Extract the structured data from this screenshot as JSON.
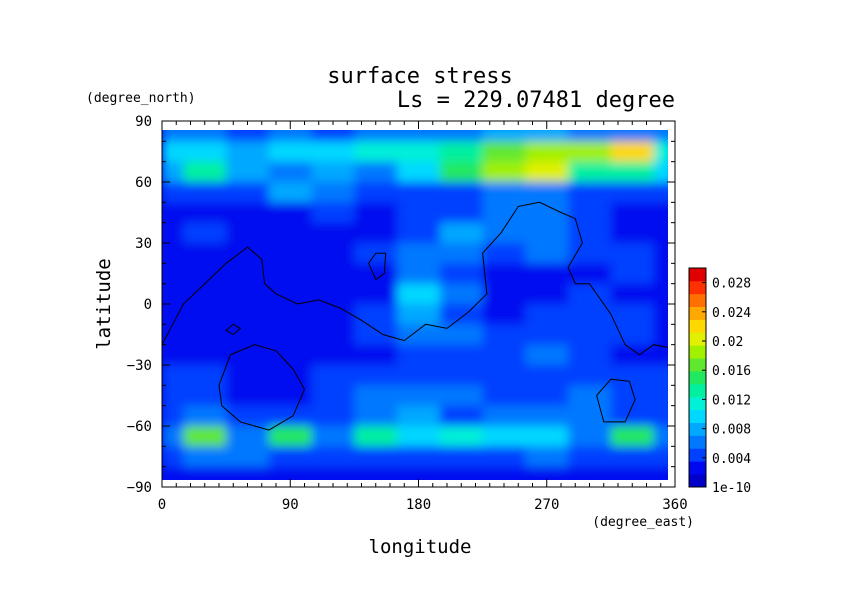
{
  "chart_data": {
    "type": "heatmap",
    "title": "surface stress",
    "subtitle": "Ls = 229.07481 degree",
    "xlabel": "longitude",
    "ylabel": "latitude",
    "x_unit": "(degree_east)",
    "y_unit": "(degree_north)",
    "xlim": [
      0,
      360
    ],
    "ylim": [
      -90,
      90
    ],
    "x_ticks": [
      "0",
      "90",
      "180",
      "270",
      "360"
    ],
    "x_tick_values": [
      0,
      90,
      180,
      270,
      360
    ],
    "y_ticks": [
      "90",
      "60",
      "30",
      "0",
      "−30",
      "−60",
      "−90"
    ],
    "y_tick_values": [
      90,
      60,
      30,
      0,
      -30,
      -60,
      -90
    ],
    "colorbar": {
      "labels": [
        "0.028",
        "0.024",
        "0.02",
        "0.016",
        "0.012",
        "0.008",
        "0.004",
        "1e-10"
      ],
      "label_values": [
        0.028,
        0.024,
        0.02,
        0.016,
        0.012,
        0.008,
        0.004,
        0
      ],
      "range": [
        0,
        0.03
      ],
      "colors": [
        "#0000c8",
        "#0008f0",
        "#0040ff",
        "#0078ff",
        "#00a8ff",
        "#00d8ff",
        "#00f0d8",
        "#00f0a0",
        "#20e860",
        "#60e830",
        "#a0f000",
        "#e0f000",
        "#ffd800",
        "#ffa800",
        "#ff7000",
        "#ff3000",
        "#e00000"
      ]
    },
    "field_grid": {
      "lats": [
        85,
        75,
        65,
        55,
        45,
        35,
        25,
        15,
        5,
        -5,
        -15,
        -25,
        -35,
        -45,
        -55,
        -65,
        -75,
        -85
      ],
      "lons": [
        0,
        30,
        60,
        90,
        120,
        150,
        180,
        210,
        240,
        270,
        300,
        330,
        360
      ],
      "values": [
        [
          0.006,
          0.006,
          0.005,
          0.006,
          0.005,
          0.006,
          0.007,
          0.007,
          0.008,
          0.008,
          0.007,
          0.007,
          0.006
        ],
        [
          0.01,
          0.009,
          0.008,
          0.01,
          0.009,
          0.012,
          0.011,
          0.014,
          0.016,
          0.018,
          0.018,
          0.022,
          0.012
        ],
        [
          0.008,
          0.014,
          0.008,
          0.007,
          0.008,
          0.007,
          0.01,
          0.015,
          0.018,
          0.02,
          0.014,
          0.013,
          0.01
        ],
        [
          0.004,
          0.004,
          0.005,
          0.008,
          0.006,
          0.004,
          0.004,
          0.005,
          0.006,
          0.007,
          0.004,
          0.004,
          0.004
        ],
        [
          0.003,
          0.003,
          0.003,
          0.003,
          0.004,
          0.003,
          0.004,
          0.005,
          0.007,
          0.006,
          0.004,
          0.003,
          0.003
        ],
        [
          0.003,
          0.004,
          0.002,
          0.002,
          0.003,
          0.003,
          0.005,
          0.008,
          0.006,
          0.007,
          0.004,
          0.003,
          0.003
        ],
        [
          0.003,
          0.002,
          0.002,
          0.002,
          0.003,
          0.004,
          0.006,
          0.006,
          0.004,
          0.006,
          0.004,
          0.004,
          0.003
        ],
        [
          0.002,
          0.002,
          0.002,
          0.002,
          0.003,
          0.003,
          0.006,
          0.004,
          0.003,
          0.003,
          0.002,
          0.004,
          0.002
        ],
        [
          0.002,
          0.002,
          0.002,
          0.002,
          0.003,
          0.003,
          0.01,
          0.006,
          0.003,
          0.003,
          0.004,
          0.003,
          0.002
        ],
        [
          0.002,
          0.002,
          0.002,
          0.002,
          0.003,
          0.004,
          0.008,
          0.005,
          0.003,
          0.004,
          0.004,
          0.004,
          0.002
        ],
        [
          0.002,
          0.002,
          0.002,
          0.002,
          0.003,
          0.004,
          0.007,
          0.006,
          0.005,
          0.005,
          0.005,
          0.004,
          0.002
        ],
        [
          0.002,
          0.002,
          0.002,
          0.002,
          0.003,
          0.003,
          0.004,
          0.004,
          0.004,
          0.007,
          0.004,
          0.003,
          0.002
        ],
        [
          0.004,
          0.004,
          0.003,
          0.003,
          0.004,
          0.004,
          0.004,
          0.004,
          0.004,
          0.004,
          0.004,
          0.004,
          0.004
        ],
        [
          0.005,
          0.004,
          0.003,
          0.003,
          0.005,
          0.006,
          0.007,
          0.006,
          0.005,
          0.004,
          0.006,
          0.005,
          0.005
        ],
        [
          0.004,
          0.006,
          0.004,
          0.004,
          0.005,
          0.006,
          0.008,
          0.005,
          0.007,
          0.006,
          0.006,
          0.005,
          0.004
        ],
        [
          0.006,
          0.016,
          0.007,
          0.015,
          0.006,
          0.013,
          0.009,
          0.012,
          0.01,
          0.009,
          0.007,
          0.015,
          0.006
        ],
        [
          0.005,
          0.006,
          0.006,
          0.005,
          0.004,
          0.005,
          0.005,
          0.004,
          0.004,
          0.006,
          0.004,
          0.005,
          0.005
        ],
        [
          0.003,
          0.003,
          0.003,
          0.003,
          0.003,
          0.003,
          0.003,
          0.003,
          0.003,
          0.003,
          0.003,
          0.003,
          0.003
        ]
      ]
    },
    "topography_contours": [
      [
        [
          0,
          -20
        ],
        [
          15,
          0
        ],
        [
          30,
          10
        ],
        [
          45,
          20
        ],
        [
          60,
          28
        ],
        [
          70,
          22
        ],
        [
          72,
          10
        ],
        [
          80,
          5
        ],
        [
          95,
          0
        ],
        [
          110,
          2
        ],
        [
          125,
          -2
        ],
        [
          140,
          -8
        ],
        [
          155,
          -15
        ],
        [
          170,
          -18
        ],
        [
          185,
          -10
        ],
        [
          200,
          -12
        ],
        [
          215,
          -4
        ],
        [
          228,
          5
        ],
        [
          225,
          25
        ],
        [
          238,
          35
        ],
        [
          250,
          48
        ],
        [
          265,
          50
        ],
        [
          280,
          45
        ],
        [
          290,
          42
        ],
        [
          295,
          30
        ],
        [
          285,
          18
        ],
        [
          290,
          10
        ],
        [
          300,
          10
        ],
        [
          315,
          -5
        ],
        [
          325,
          -20
        ],
        [
          335,
          -25
        ],
        [
          345,
          -20
        ],
        [
          360,
          -22
        ]
      ],
      [
        [
          40,
          -40
        ],
        [
          48,
          -25
        ],
        [
          65,
          -20
        ],
        [
          80,
          -23
        ],
        [
          92,
          -32
        ],
        [
          100,
          -42
        ],
        [
          92,
          -55
        ],
        [
          75,
          -62
        ],
        [
          55,
          -58
        ],
        [
          42,
          -50
        ],
        [
          40,
          -40
        ]
      ],
      [
        [
          145,
          20
        ],
        [
          150,
          25
        ],
        [
          157,
          25
        ],
        [
          156,
          15
        ],
        [
          150,
          12
        ],
        [
          145,
          20
        ]
      ],
      [
        [
          305,
          -45
        ],
        [
          315,
          -37
        ],
        [
          328,
          -38
        ],
        [
          332,
          -47
        ],
        [
          325,
          -58
        ],
        [
          310,
          -58
        ],
        [
          305,
          -45
        ]
      ],
      [
        [
          50,
          -15
        ],
        [
          55,
          -12
        ],
        [
          50,
          -10
        ],
        [
          45,
          -13
        ],
        [
          50,
          -15
        ]
      ]
    ]
  }
}
